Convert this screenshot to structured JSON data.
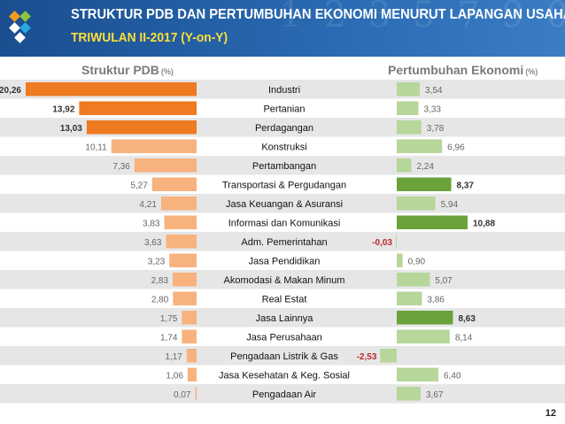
{
  "header": {
    "title": "STRUKTUR PDB DAN PERTUMBUHAN EKONOMI MENURUT LAPANGAN USAHA",
    "subtitle": "TRIWULAN II-2017 (Y-on-Y)"
  },
  "left_panel": {
    "title": "Struktur PDB",
    "unit": "(%)"
  },
  "right_panel": {
    "title": "Pertumbuhan Ekonomi",
    "unit": "(%)"
  },
  "page_number": "12",
  "colors": {
    "header_bg": "#1f5aa0",
    "subtitle_yellow": "#ffdf3a",
    "struktur_dark": "#ee7a22",
    "struktur_light": "#f7b27e",
    "growth_dark": "#6aa33a",
    "growth_light": "#b6d69a",
    "row_band": "#e6e6e6"
  },
  "chart_data": {
    "type": "bar",
    "categories": [
      "Industri",
      "Pertanian",
      "Perdagangan",
      "Konstruksi",
      "Pertambangan",
      "Transportasi & Pergudangan",
      "Jasa Keuangan & Asuransi",
      "Informasi dan Komunikasi",
      "Adm. Pemerintahan",
      "Jasa Pendidikan",
      "Akomodasi & Makan Minum",
      "Real Estat",
      "Jasa Lainnya",
      "Jasa Perusahaan",
      "Pengadaan Listrik & Gas",
      "Jasa Kesehatan & Keg. Sosial",
      "Pengadaan Air"
    ],
    "series": [
      {
        "name": "Struktur PDB",
        "values": [
          20.26,
          13.92,
          13.03,
          10.11,
          7.36,
          5.27,
          4.21,
          3.83,
          3.63,
          3.23,
          2.83,
          2.8,
          1.75,
          1.74,
          1.17,
          1.06,
          0.07
        ],
        "labels": [
          "20,26",
          "13,92",
          "13,03",
          "10,11",
          "7,36",
          "5,27",
          "4,21",
          "3,83",
          "3,63",
          "3,23",
          "2,83",
          "2,80",
          "1,75",
          "1,74",
          "1,17",
          "1,06",
          "0,07"
        ],
        "highlight": [
          true,
          true,
          true,
          false,
          false,
          false,
          false,
          false,
          false,
          false,
          false,
          false,
          false,
          false,
          false,
          false,
          false
        ]
      },
      {
        "name": "Pertumbuhan Ekonomi",
        "values": [
          3.54,
          3.33,
          3.78,
          6.96,
          2.24,
          8.37,
          5.94,
          10.88,
          -0.03,
          0.9,
          5.07,
          3.86,
          8.63,
          8.14,
          -2.53,
          6.4,
          3.67
        ],
        "labels": [
          "3,54",
          "3,33",
          "3,78",
          "6,96",
          "2,24",
          "8,37",
          "5,94",
          "10,88",
          "-0,03",
          "0,90",
          "5,07",
          "3,86",
          "8,63",
          "8,14",
          "-2,53",
          "6,40",
          "3,67"
        ],
        "highlight": [
          false,
          false,
          false,
          false,
          false,
          true,
          false,
          true,
          false,
          false,
          false,
          false,
          true,
          false,
          false,
          false,
          false
        ],
        "negative_highlight": [
          false,
          false,
          false,
          false,
          false,
          false,
          false,
          false,
          true,
          false,
          false,
          false,
          false,
          false,
          true,
          false,
          false
        ]
      }
    ]
  }
}
